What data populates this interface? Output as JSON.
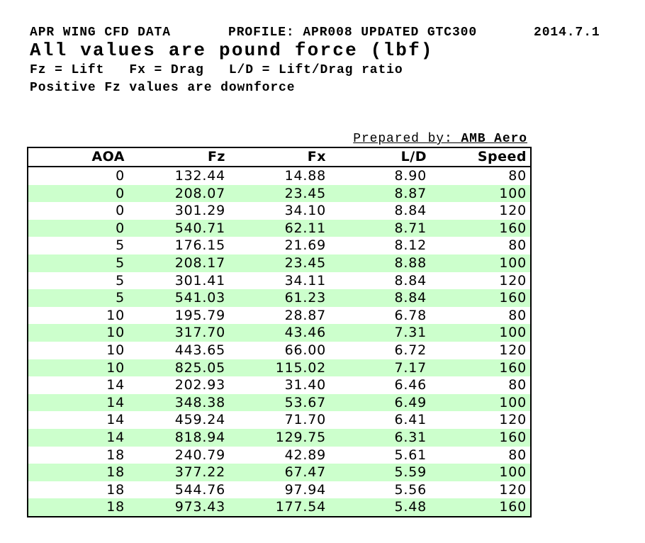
{
  "header": {
    "title": "APR WING CFD DATA",
    "profile": "PROFILE: APR008 UPDATED GTC300",
    "date": "2014.7.1",
    "subtitle": "All values are pound force (lbf)",
    "legend": "Fz = Lift   Fx = Drag   L/D = Lift/Drag ratio",
    "note": "Positive Fz values are downforce"
  },
  "prepared_by": {
    "label": "Prepared by: ",
    "value": "AMB Aero"
  },
  "table": {
    "columns": [
      "AOA",
      "Fz",
      "Fx",
      "L/D",
      "Speed"
    ],
    "rows": [
      [
        "0",
        "132.44",
        "14.88",
        "8.90",
        "80"
      ],
      [
        "0",
        "208.07",
        "23.45",
        "8.87",
        "100"
      ],
      [
        "0",
        "301.29",
        "34.10",
        "8.84",
        "120"
      ],
      [
        "0",
        "540.71",
        "62.11",
        "8.71",
        "160"
      ],
      [
        "5",
        "176.15",
        "21.69",
        "8.12",
        "80"
      ],
      [
        "5",
        "208.17",
        "23.45",
        "8.88",
        "100"
      ],
      [
        "5",
        "301.41",
        "34.11",
        "8.84",
        "120"
      ],
      [
        "5",
        "541.03",
        "61.23",
        "8.84",
        "160"
      ],
      [
        "10",
        "195.79",
        "28.87",
        "6.78",
        "80"
      ],
      [
        "10",
        "317.70",
        "43.46",
        "7.31",
        "100"
      ],
      [
        "10",
        "443.65",
        "66.00",
        "6.72",
        "120"
      ],
      [
        "10",
        "825.05",
        "115.02",
        "7.17",
        "160"
      ],
      [
        "14",
        "202.93",
        "31.40",
        "6.46",
        "80"
      ],
      [
        "14",
        "348.38",
        "53.67",
        "6.49",
        "100"
      ],
      [
        "14",
        "459.24",
        "71.70",
        "6.41",
        "120"
      ],
      [
        "14",
        "818.94",
        "129.75",
        "6.31",
        "160"
      ],
      [
        "18",
        "240.79",
        "42.89",
        "5.61",
        "80"
      ],
      [
        "18",
        "377.22",
        "67.47",
        "5.59",
        "100"
      ],
      [
        "18",
        "544.76",
        "97.94",
        "5.56",
        "120"
      ],
      [
        "18",
        "973.43",
        "177.54",
        "5.48",
        "160"
      ]
    ]
  },
  "colors": {
    "row_stripe": "#ccffcc",
    "row_plain": "#ffffff",
    "border": "#000000",
    "text": "#000000"
  }
}
